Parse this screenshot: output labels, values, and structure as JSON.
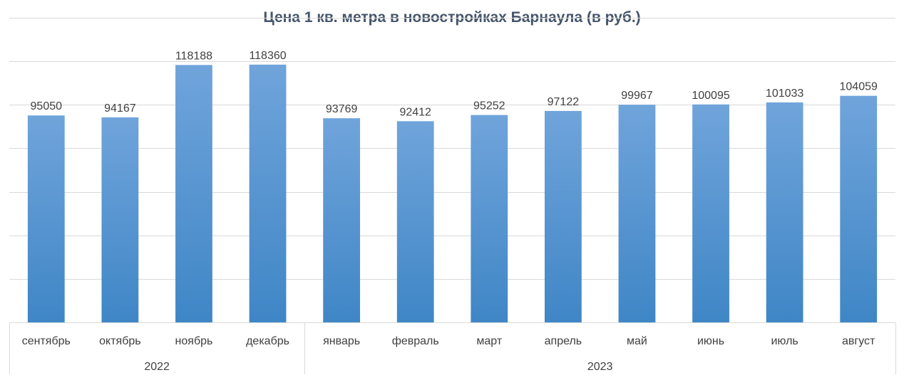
{
  "chart_data": {
    "type": "bar",
    "title": "Цена 1 кв. метра в новостройках Барнаула (в руб.)",
    "categories": [
      "сентябрь",
      "октябрь",
      "ноябрь",
      "декабрь",
      "январь",
      "февраль",
      "март",
      "апрель",
      "май",
      "июнь",
      "июль",
      "август"
    ],
    "groups": [
      {
        "label": "2022",
        "count": 4
      },
      {
        "label": "2023",
        "count": 8
      }
    ],
    "values": [
      95050,
      94167,
      118188,
      118360,
      93769,
      92412,
      95252,
      97122,
      99967,
      100095,
      101033,
      104059
    ],
    "ylim": [
      0,
      140000
    ],
    "grid": true,
    "y_axis_labels_shown": false,
    "colors": {
      "bar_top": "#70a4db",
      "bar_bottom": "#3f86c6",
      "grid": "#d9d9d9",
      "title": "#44546a",
      "text": "#404040"
    }
  }
}
